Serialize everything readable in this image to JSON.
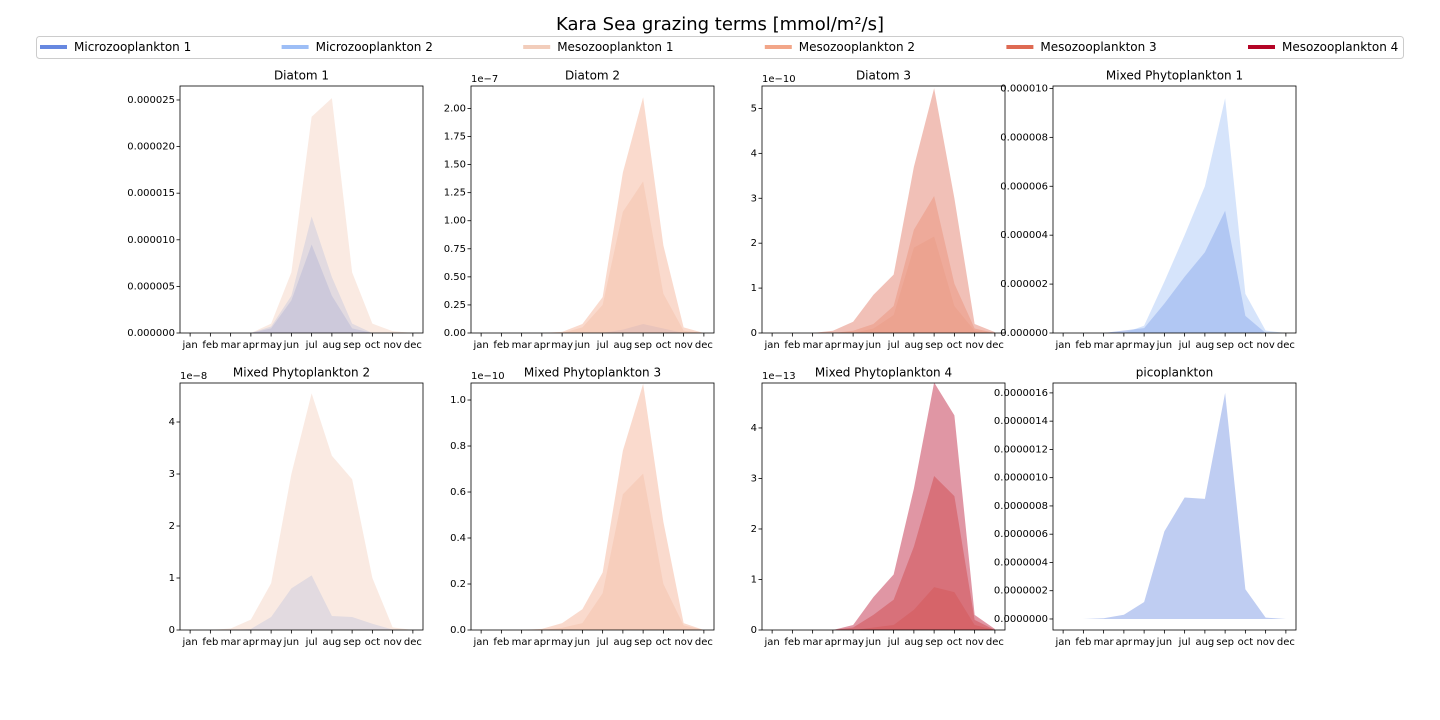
{
  "title": "Kara Sea grazing terms [mmol/m²/s]",
  "legend": [
    {
      "name": "Microzooplankton 1",
      "color": "#6788e0"
    },
    {
      "name": "Microzooplankton 2",
      "color": "#9dbef6"
    },
    {
      "name": "Mesozooplankton 1",
      "color": "#f2cdbb"
    },
    {
      "name": "Mesozooplankton 2",
      "color": "#f2a689"
    },
    {
      "name": "Mesozooplankton 3",
      "color": "#de6a53"
    },
    {
      "name": "Mesozooplankton 4",
      "color": "#b40426"
    }
  ],
  "chart_data": [
    {
      "type": "area",
      "title": "Diatom 1",
      "categories": [
        "jan",
        "feb",
        "mar",
        "apr",
        "may",
        "jun",
        "jul",
        "aug",
        "sep",
        "oct",
        "nov",
        "dec"
      ],
      "ylim": [
        0,
        2.65e-05
      ],
      "yticks": [
        {
          "value": 0,
          "label": "0.000000"
        },
        {
          "value": 5e-06,
          "label": "0.000005"
        },
        {
          "value": 1e-05,
          "label": "0.000010"
        },
        {
          "value": 1.5e-05,
          "label": "0.000015"
        },
        {
          "value": 2e-05,
          "label": "0.000020"
        },
        {
          "value": 2.5e-05,
          "label": "0.000025"
        }
      ],
      "series": [
        {
          "values": [
            0,
            0,
            0,
            0,
            5e-07,
            3.5e-06,
            9.5e-06,
            4e-06,
            5e-07,
            0,
            0,
            0
          ]
        },
        {
          "values": [
            0,
            0,
            0,
            0,
            7e-07,
            4e-06,
            1.25e-05,
            6e-06,
            1e-06,
            0,
            0,
            0
          ]
        },
        {
          "values": [
            0,
            0,
            0,
            0,
            1e-06,
            6.5e-06,
            2.32e-05,
            2.52e-05,
            6.5e-06,
            1e-06,
            2e-07,
            0
          ]
        },
        {
          "values": [
            0,
            0,
            0,
            0,
            0,
            0,
            0,
            0,
            0,
            0,
            0,
            0
          ]
        },
        {
          "values": [
            0,
            0,
            0,
            0,
            0,
            0,
            0,
            0,
            0,
            0,
            0,
            0
          ]
        },
        {
          "values": [
            0,
            0,
            0,
            0,
            0,
            0,
            0,
            0,
            0,
            0,
            0,
            0
          ]
        }
      ]
    },
    {
      "type": "area",
      "title": "Diatom 2",
      "offset_label": "1e−7",
      "categories": [
        "jan",
        "feb",
        "mar",
        "apr",
        "may",
        "jun",
        "jul",
        "aug",
        "sep",
        "oct",
        "nov",
        "dec"
      ],
      "ylim": [
        0,
        2.2
      ],
      "yticks": [
        {
          "value": 0,
          "label": "0.00"
        },
        {
          "value": 0.25,
          "label": "0.25"
        },
        {
          "value": 0.5,
          "label": "0.50"
        },
        {
          "value": 0.75,
          "label": "0.75"
        },
        {
          "value": 1,
          "label": "1.00"
        },
        {
          "value": 1.25,
          "label": "1.25"
        },
        {
          "value": 1.5,
          "label": "1.50"
        },
        {
          "value": 1.75,
          "label": "1.75"
        },
        {
          "value": 2,
          "label": "2.00"
        }
      ],
      "series": [
        {
          "values": [
            0,
            0,
            0,
            0,
            0,
            0,
            0,
            0,
            0,
            0,
            0,
            0
          ]
        },
        {
          "values": [
            0,
            0,
            0,
            0,
            0,
            0,
            0,
            0.03,
            0.08,
            0.04,
            0,
            0
          ]
        },
        {
          "values": [
            0,
            0,
            0,
            0,
            0,
            0.05,
            0.25,
            1.08,
            1.35,
            0.35,
            0.02,
            0
          ]
        },
        {
          "values": [
            0,
            0,
            0,
            0,
            0.01,
            0.08,
            0.32,
            1.43,
            2.1,
            0.78,
            0.05,
            0
          ]
        },
        {
          "values": [
            0,
            0,
            0,
            0,
            0,
            0,
            0,
            0,
            0,
            0,
            0,
            0
          ]
        },
        {
          "values": [
            0,
            0,
            0,
            0,
            0,
            0,
            0,
            0,
            0,
            0,
            0,
            0
          ]
        }
      ]
    },
    {
      "type": "area",
      "title": "Diatom 3",
      "offset_label": "1e−10",
      "categories": [
        "jan",
        "feb",
        "mar",
        "apr",
        "may",
        "jun",
        "jul",
        "aug",
        "sep",
        "oct",
        "nov",
        "dec"
      ],
      "ylim": [
        0,
        5.5
      ],
      "yticks": [
        0,
        1,
        2,
        3,
        4,
        5
      ],
      "series": [
        {
          "values": [
            0,
            0,
            0,
            0,
            0,
            0,
            0,
            0,
            0,
            0,
            0,
            0
          ]
        },
        {
          "values": [
            0,
            0,
            0,
            0,
            0,
            0,
            0,
            0,
            0,
            0,
            0,
            0
          ]
        },
        {
          "values": [
            0,
            0,
            0,
            0,
            0,
            0.1,
            0.4,
            1.9,
            2.15,
            0.6,
            0.05,
            0
          ]
        },
        {
          "values": [
            0,
            0,
            0,
            0,
            0.05,
            0.2,
            0.6,
            2.3,
            3.05,
            1.1,
            0.1,
            0
          ]
        },
        {
          "values": [
            0,
            0,
            0,
            0.05,
            0.25,
            0.85,
            1.3,
            3.7,
            5.45,
            3,
            0.2,
            0.02
          ]
        },
        {
          "values": [
            0,
            0,
            0,
            0,
            0,
            0,
            0,
            0,
            0,
            0,
            0,
            0
          ]
        }
      ]
    },
    {
      "type": "area",
      "title": "Mixed Phytoplankton 1",
      "categories": [
        "jan",
        "feb",
        "mar",
        "apr",
        "may",
        "jun",
        "jul",
        "aug",
        "sep",
        "oct",
        "nov",
        "dec"
      ],
      "ylim": [
        0,
        1.01e-05
      ],
      "yticks": [
        {
          "value": 0,
          "label": "0.000000"
        },
        {
          "value": 2e-06,
          "label": "0.000002"
        },
        {
          "value": 4e-06,
          "label": "0.000004"
        },
        {
          "value": 6e-06,
          "label": "0.000006"
        },
        {
          "value": 8e-06,
          "label": "0.000008"
        },
        {
          "value": 1e-05,
          "label": "0.000010"
        }
      ],
      "series": [
        {
          "values": [
            0,
            0,
            0,
            1e-07,
            2e-07,
            1.2e-06,
            2.3e-06,
            3.3e-06,
            5e-06,
            7e-07,
            0,
            0
          ]
        },
        {
          "values": [
            0,
            0,
            0,
            0,
            3e-07,
            2.1e-06,
            4e-06,
            6e-06,
            9.6e-06,
            1.6e-06,
            1e-07,
            0
          ]
        },
        {
          "values": [
            0,
            0,
            0,
            0,
            0,
            0,
            0,
            0,
            0,
            0,
            0,
            0
          ]
        },
        {
          "values": [
            0,
            0,
            0,
            0,
            0,
            0,
            0,
            0,
            0,
            0,
            0,
            0
          ]
        },
        {
          "values": [
            0,
            0,
            0,
            0,
            0,
            0,
            0,
            0,
            0,
            0,
            0,
            0
          ]
        },
        {
          "values": [
            0,
            0,
            0,
            0,
            0,
            0,
            0,
            0,
            0,
            0,
            0,
            0
          ]
        }
      ]
    },
    {
      "type": "area",
      "title": "Mixed Phytoplankton 2",
      "offset_label": "1e−8",
      "categories": [
        "jan",
        "feb",
        "mar",
        "apr",
        "may",
        "jun",
        "jul",
        "aug",
        "sep",
        "oct",
        "nov",
        "dec"
      ],
      "ylim": [
        0,
        4.75
      ],
      "yticks": [
        0,
        1,
        2,
        3,
        4
      ],
      "series": [
        {
          "values": [
            0,
            0,
            0,
            0,
            0,
            0,
            0,
            0,
            0,
            0,
            0,
            0
          ]
        },
        {
          "values": [
            0,
            0,
            0,
            0.02,
            0.25,
            0.8,
            1.05,
            0.27,
            0.25,
            0.12,
            0.01,
            0
          ]
        },
        {
          "values": [
            0,
            0,
            0.03,
            0.2,
            0.9,
            3,
            4.55,
            3.35,
            2.9,
            1,
            0.05,
            0
          ]
        },
        {
          "values": [
            0,
            0,
            0,
            0,
            0,
            0,
            0,
            0,
            0,
            0,
            0,
            0
          ]
        },
        {
          "values": [
            0,
            0,
            0,
            0,
            0,
            0,
            0,
            0,
            0,
            0,
            0,
            0
          ]
        },
        {
          "values": [
            0,
            0,
            0,
            0,
            0,
            0,
            0,
            0,
            0,
            0,
            0,
            0
          ]
        }
      ]
    },
    {
      "type": "area",
      "title": "Mixed Phytoplankton 3",
      "offset_label": "1e−10",
      "categories": [
        "jan",
        "feb",
        "mar",
        "apr",
        "may",
        "jun",
        "jul",
        "aug",
        "sep",
        "oct",
        "nov",
        "dec"
      ],
      "ylim": [
        0,
        1.074
      ],
      "yticks": [
        {
          "value": 0,
          "label": "0.0"
        },
        0.2,
        0.4,
        0.6,
        0.8,
        {
          "value": 1,
          "label": "1.0"
        }
      ],
      "series": [
        {
          "values": [
            0,
            0,
            0,
            0,
            0,
            0,
            0,
            0,
            0,
            0,
            0,
            0
          ]
        },
        {
          "values": [
            0,
            0,
            0,
            0,
            0,
            0,
            0,
            0,
            0,
            0,
            0,
            0
          ]
        },
        {
          "values": [
            0,
            0,
            0,
            0,
            0.01,
            0.03,
            0.16,
            0.59,
            0.68,
            0.2,
            0.02,
            0
          ]
        },
        {
          "values": [
            0,
            0,
            0,
            0.005,
            0.03,
            0.09,
            0.25,
            0.78,
            1.07,
            0.47,
            0.03,
            0
          ]
        },
        {
          "values": [
            0,
            0,
            0,
            0,
            0,
            0,
            0,
            0,
            0,
            0,
            0,
            0
          ]
        },
        {
          "values": [
            0,
            0,
            0,
            0,
            0,
            0,
            0,
            0,
            0,
            0,
            0,
            0
          ]
        }
      ]
    },
    {
      "type": "area",
      "title": "Mixed Phytoplankton 4",
      "offset_label": "1e−13",
      "categories": [
        "jan",
        "feb",
        "mar",
        "apr",
        "may",
        "jun",
        "jul",
        "aug",
        "sep",
        "oct",
        "nov",
        "dec"
      ],
      "ylim": [
        0,
        4.89
      ],
      "yticks": [
        0,
        1,
        2,
        3,
        4
      ],
      "series": [
        {
          "values": [
            0,
            0,
            0,
            0,
            0,
            0,
            0,
            0,
            0,
            0,
            0,
            0
          ]
        },
        {
          "values": [
            0,
            0,
            0,
            0,
            0,
            0,
            0,
            0,
            0,
            0,
            0,
            0
          ]
        },
        {
          "values": [
            0,
            0,
            0,
            0,
            0,
            0,
            0,
            0,
            0,
            0,
            0,
            0
          ]
        },
        {
          "values": [
            0,
            0,
            0,
            0,
            0,
            0.05,
            0.1,
            0.4,
            0.85,
            0.75,
            0.1,
            0
          ]
        },
        {
          "values": [
            0,
            0,
            0,
            0,
            0.05,
            0.3,
            0.6,
            1.65,
            3.05,
            2.65,
            0.2,
            0
          ]
        },
        {
          "values": [
            0,
            0,
            0,
            0,
            0.1,
            0.65,
            1.1,
            2.8,
            4.9,
            4.25,
            0.3,
            0.02
          ]
        }
      ]
    },
    {
      "type": "area",
      "title": "picoplankton",
      "categories": [
        "jan",
        "feb",
        "mar",
        "apr",
        "may",
        "jun",
        "jul",
        "aug",
        "sep",
        "oct",
        "nov",
        "dec"
      ],
      "ylim": [
        -7.8e-08,
        1.67e-06
      ],
      "yticks": [
        {
          "value": 0,
          "label": "0.0000000"
        },
        {
          "value": 2e-07,
          "label": "0.0000002"
        },
        {
          "value": 4e-07,
          "label": "0.0000004"
        },
        {
          "value": 6e-07,
          "label": "0.0000006"
        },
        {
          "value": 8e-07,
          "label": "0.0000008"
        },
        {
          "value": 1e-06,
          "label": "0.0000010"
        },
        {
          "value": 1.2e-06,
          "label": "0.0000012"
        },
        {
          "value": 1.4e-06,
          "label": "0.0000014"
        },
        {
          "value": 1.6e-06,
          "label": "0.0000016"
        }
      ],
      "series": [
        {
          "values": [
            0,
            0,
            5e-09,
            3e-08,
            1.2e-07,
            6.2e-07,
            8.6e-07,
            8.5e-07,
            1.6e-06,
            2.1e-07,
            1e-08,
            0
          ]
        },
        {
          "values": [
            0,
            0,
            0,
            0,
            0,
            0,
            0,
            0,
            0,
            0,
            0,
            0
          ]
        },
        {
          "values": [
            0,
            0,
            0,
            0,
            0,
            0,
            0,
            0,
            0,
            0,
            0,
            0
          ]
        },
        {
          "values": [
            0,
            0,
            0,
            0,
            0,
            0,
            0,
            0,
            0,
            0,
            0,
            0
          ]
        },
        {
          "values": [
            0,
            0,
            0,
            0,
            0,
            0,
            0,
            0,
            0,
            0,
            0,
            0
          ]
        },
        {
          "values": [
            0,
            0,
            0,
            0,
            0,
            0,
            0,
            0,
            0,
            0,
            0,
            0
          ]
        }
      ]
    }
  ]
}
